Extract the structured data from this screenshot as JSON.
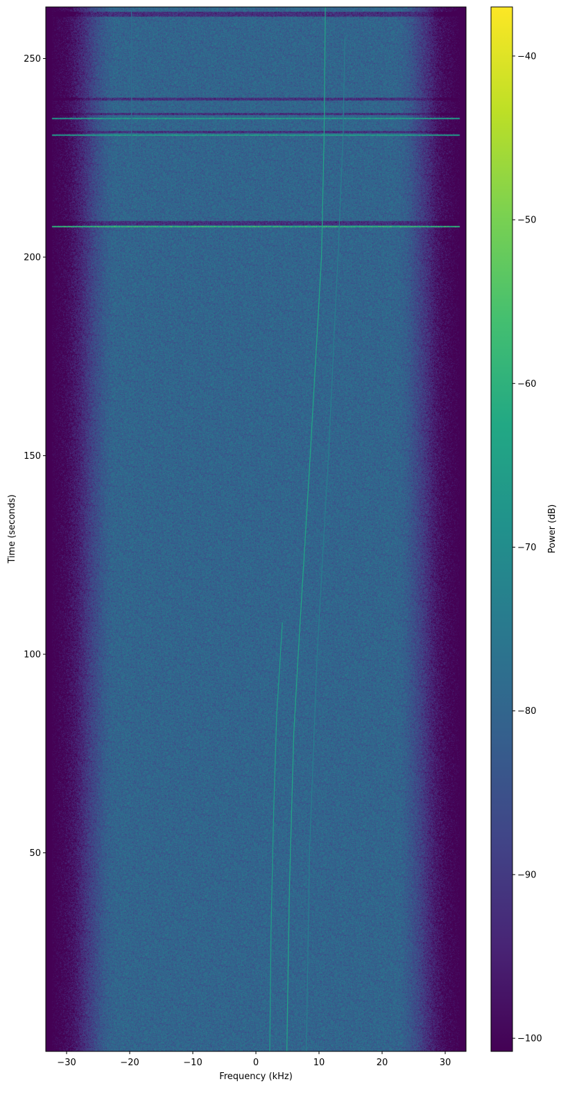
{
  "chart_data": {
    "type": "heatmap",
    "subtype": "spectrogram",
    "title": "",
    "xlabel": "Frequency (kHz)",
    "ylabel": "Time (seconds)",
    "xlim": [
      -33.3,
      33.3
    ],
    "ylim": [
      0,
      263
    ],
    "xticks": [
      -30,
      -20,
      -10,
      0,
      10,
      20,
      30
    ],
    "xtick_labels": [
      "−30",
      "−20",
      "−10",
      "0",
      "10",
      "20",
      "30"
    ],
    "yticks": [
      50,
      100,
      150,
      200,
      250
    ],
    "ytick_labels": [
      "50",
      "100",
      "150",
      "200",
      "250"
    ],
    "colormap": "viridis",
    "colorbar": {
      "label": "Power (dB)",
      "range": [
        -100.8,
        -37
      ],
      "ticks": [
        -40,
        -50,
        -60,
        -70,
        -80,
        -90,
        -100
      ],
      "tick_labels": [
        "−40",
        "−50",
        "−60",
        "−70",
        "−80",
        "−90",
        "−100"
      ]
    },
    "noise_floor_db": -80,
    "band_edge_db": -101,
    "passband_edge_khz": 31.5,
    "dropout_bands": [
      {
        "t": [
          260.5,
          261.8
        ],
        "db": -92
      },
      {
        "t": [
          239.5,
          240.2
        ],
        "db": -92
      },
      {
        "t": [
          235.8,
          236.3
        ],
        "db": -92
      },
      {
        "t": [
          231.2,
          231.8
        ],
        "db": -92
      },
      {
        "t": [
          208.0,
          209.0
        ],
        "db": -92
      }
    ],
    "burst_lines": [
      {
        "t": 234.9,
        "db": -66
      },
      {
        "t": 230.7,
        "db": -66
      },
      {
        "t": 207.7,
        "db": -60
      }
    ],
    "series": [
      {
        "points": [
          [
            2.2,
            0
          ],
          [
            2.4,
            30
          ],
          [
            2.8,
            60
          ],
          [
            3.3,
            85
          ],
          [
            4.2,
            108
          ]
        ],
        "db": -66
      },
      {
        "points": [
          [
            4.9,
            0
          ],
          [
            5.3,
            40
          ],
          [
            6.0,
            80
          ],
          [
            6.7,
            100
          ],
          [
            8.6,
            150
          ],
          [
            10.4,
            200
          ],
          [
            10.8,
            230
          ],
          [
            11.0,
            263
          ]
        ],
        "db": -64
      },
      {
        "points": [
          [
            8.0,
            0
          ],
          [
            8.5,
            50
          ],
          [
            9.7,
            100
          ],
          [
            11.5,
            150
          ],
          [
            13.0,
            200
          ],
          [
            13.8,
            230
          ],
          [
            14.1,
            255
          ]
        ],
        "db": -74
      },
      {
        "points": [
          [
            -19.7,
            225
          ],
          [
            -19.7,
            262
          ]
        ],
        "db": -78
      }
    ]
  }
}
